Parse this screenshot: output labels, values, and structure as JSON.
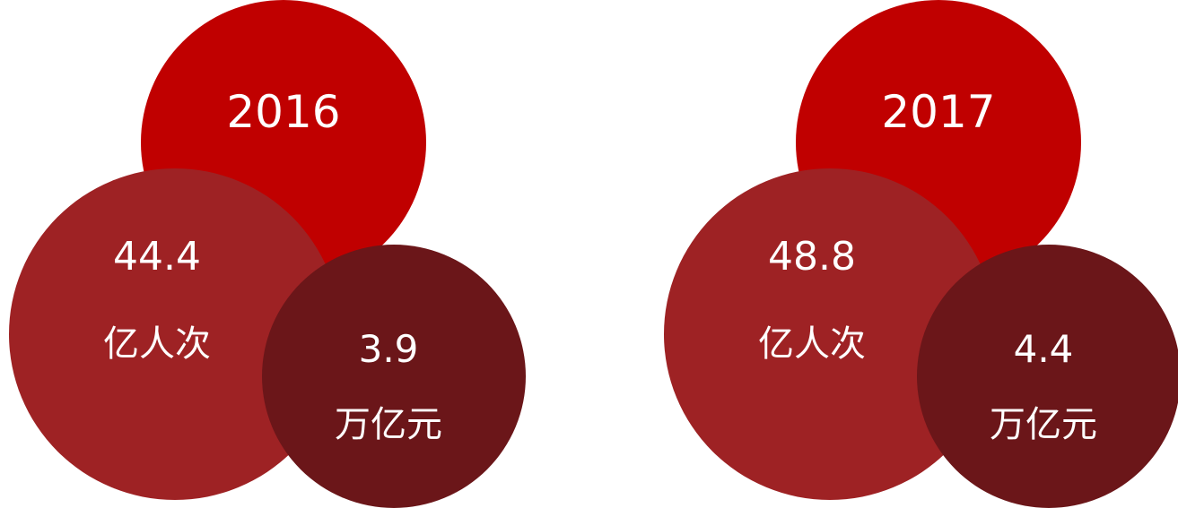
{
  "panels": [
    {
      "year": "2016",
      "visits": {
        "value": "44.4",
        "unit": "亿人次"
      },
      "revenue": {
        "value": "3.9",
        "unit": "万亿元"
      }
    },
    {
      "year": "2017",
      "visits": {
        "value": "48.8",
        "unit": "亿人次"
      },
      "revenue": {
        "value": "4.4",
        "unit": "万亿元"
      }
    }
  ],
  "colors": {
    "year_circle": "#c00000",
    "visits_circle": "#9e2224",
    "revenue_circle": "#6b1619",
    "text": "#ffffff"
  }
}
